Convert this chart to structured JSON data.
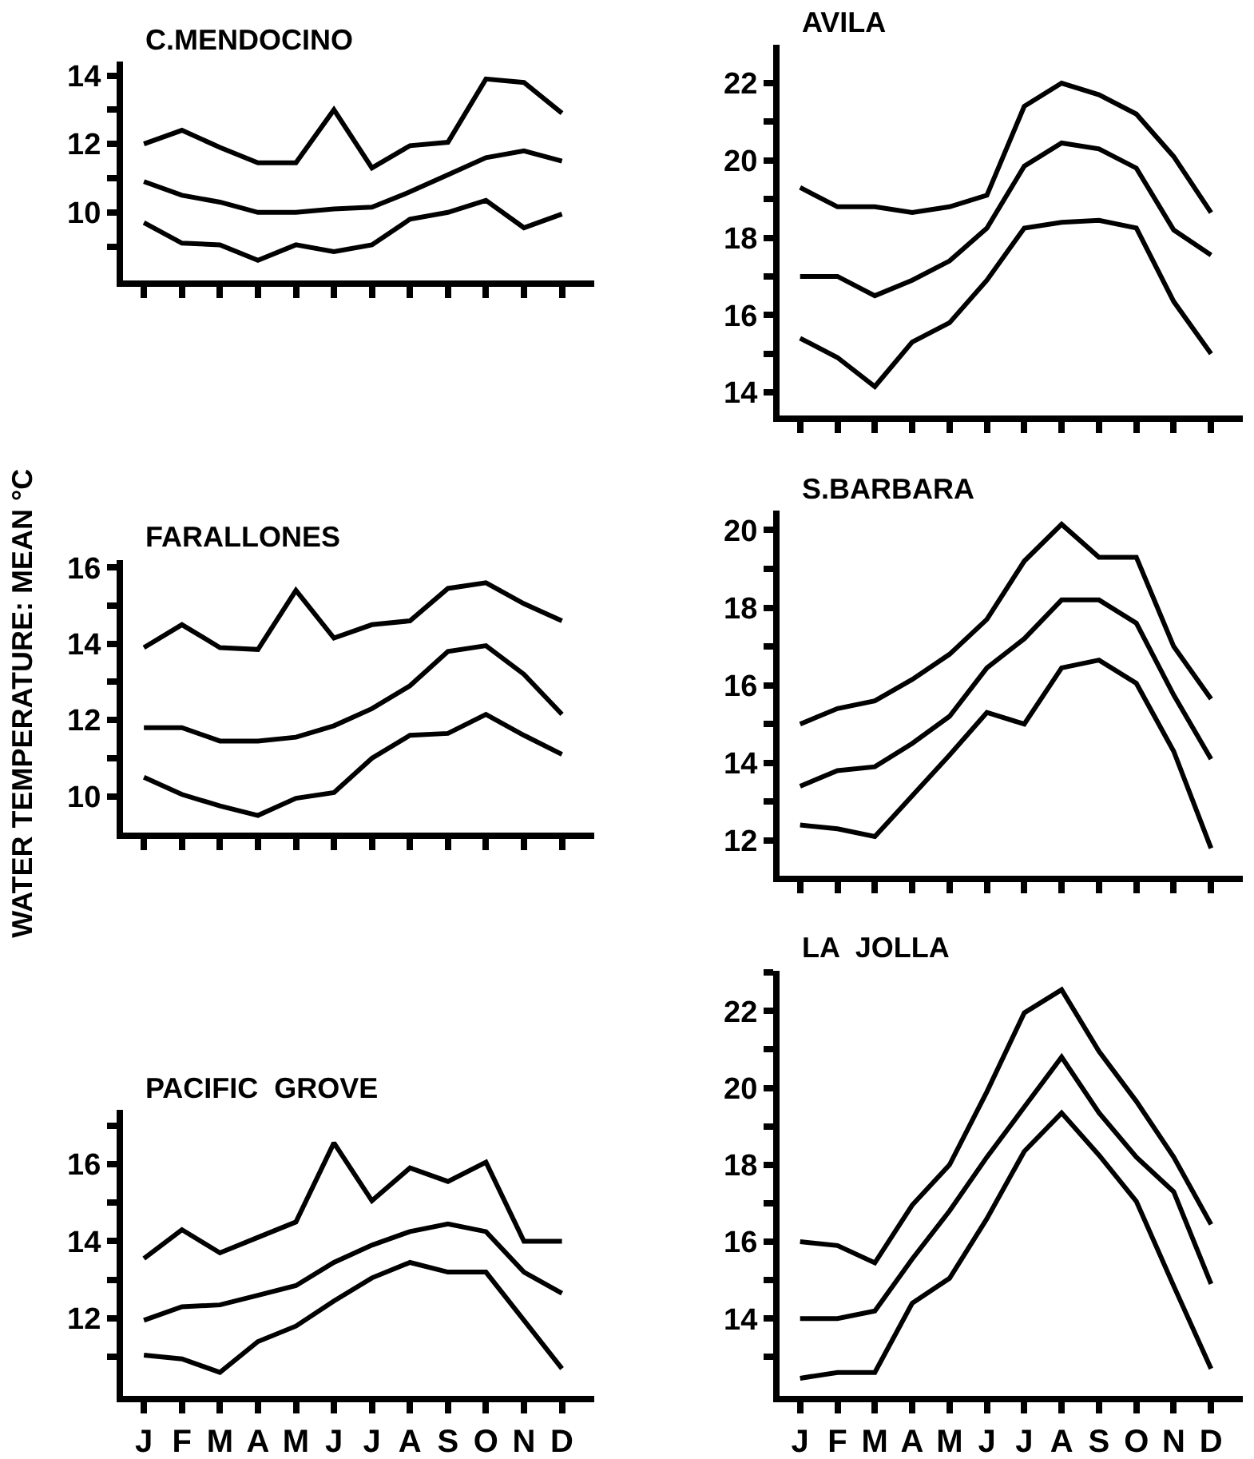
{
  "chart_data": [
    {
      "type": "line",
      "title": "C.MENDOCINO",
      "categories": [
        null,
        null,
        null,
        null,
        null,
        null,
        null,
        null,
        null,
        null,
        null,
        null
      ],
      "marker": "none",
      "line_style": "solid",
      "ylim": [
        8.0,
        14.4
      ],
      "yticks": [
        {
          "value": 9,
          "label": null
        },
        10,
        {
          "value": 11,
          "label": null
        },
        12,
        {
          "value": 13,
          "label": null
        },
        14
      ],
      "series": [
        {
          "color": "#000000",
          "values": [
            12.0,
            12.4,
            11.9,
            11.45,
            11.45,
            13.0,
            11.3,
            11.95,
            12.05,
            13.9,
            13.8,
            12.9
          ]
        },
        {
          "color": "#000000",
          "values": [
            10.9,
            10.5,
            10.3,
            10.0,
            10.0,
            10.1,
            10.15,
            10.6,
            11.1,
            11.6,
            11.8,
            11.5
          ]
        },
        {
          "color": "#000000",
          "values": [
            9.7,
            9.1,
            9.05,
            8.6,
            9.05,
            8.85,
            9.05,
            9.8,
            10.0,
            10.35,
            9.55,
            9.95
          ]
        }
      ]
    },
    {
      "type": "line",
      "title": "AVILA",
      "categories": [
        null,
        null,
        null,
        null,
        null,
        null,
        null,
        null,
        null,
        null,
        null,
        null
      ],
      "marker": "none",
      "line_style": "solid",
      "ylim": [
        13.4,
        23.0
      ],
      "yticks": [
        14,
        {
          "value": 15,
          "label": null
        },
        16,
        {
          "value": 17,
          "label": null
        },
        18,
        {
          "value": 19,
          "label": null
        },
        20,
        {
          "value": 21,
          "label": null
        },
        22
      ],
      "series": [
        {
          "color": "#000000",
          "values": [
            19.3,
            18.8,
            18.8,
            18.65,
            18.8,
            19.1,
            21.4,
            22.0,
            21.7,
            21.2,
            20.1,
            18.65
          ]
        },
        {
          "color": "#000000",
          "values": [
            17.0,
            17.0,
            16.5,
            16.9,
            17.4,
            18.25,
            19.85,
            20.45,
            20.3,
            19.8,
            18.2,
            17.55
          ]
        },
        {
          "color": "#000000",
          "values": [
            15.4,
            14.9,
            14.15,
            15.3,
            15.8,
            16.9,
            18.25,
            18.4,
            18.45,
            18.25,
            16.35,
            15.0
          ]
        }
      ]
    },
    {
      "type": "line",
      "title": "FARALLONES",
      "ylabel": "WATER TEMPERATURE: MEAN °C",
      "categories": [
        null,
        null,
        null,
        null,
        null,
        null,
        null,
        null,
        null,
        null,
        null,
        null
      ],
      "marker": "none",
      "line_style": "solid",
      "ylim": [
        9.05,
        16.2
      ],
      "yticks": [
        10,
        {
          "value": 11,
          "label": null
        },
        12,
        {
          "value": 13,
          "label": null
        },
        14,
        {
          "value": 15,
          "label": null
        },
        16
      ],
      "series": [
        {
          "color": "#000000",
          "values": [
            13.9,
            14.5,
            13.9,
            13.85,
            15.4,
            14.15,
            14.5,
            14.6,
            15.45,
            15.6,
            15.05,
            14.6
          ]
        },
        {
          "color": "#000000",
          "values": [
            11.8,
            11.8,
            11.45,
            11.45,
            11.55,
            11.85,
            12.3,
            12.9,
            13.8,
            13.95,
            13.2,
            12.15
          ]
        },
        {
          "color": "#000000",
          "values": [
            10.5,
            10.05,
            9.75,
            9.5,
            9.95,
            10.1,
            11.0,
            11.6,
            11.65,
            12.15,
            11.6,
            11.1
          ]
        }
      ]
    },
    {
      "type": "line",
      "title": "S.BARBARA",
      "categories": [
        null,
        null,
        null,
        null,
        null,
        null,
        null,
        null,
        null,
        null,
        null,
        null
      ],
      "marker": "none",
      "line_style": "solid",
      "ylim": [
        11.1,
        20.5
      ],
      "yticks": [
        12,
        {
          "value": 13,
          "label": null
        },
        14,
        {
          "value": 15,
          "label": null
        },
        16,
        {
          "value": 17,
          "label": null
        },
        18,
        {
          "value": 19,
          "label": null
        },
        20
      ],
      "series": [
        {
          "color": "#000000",
          "values": [
            15.0,
            15.4,
            15.6,
            16.15,
            16.8,
            17.7,
            19.2,
            20.15,
            19.3,
            19.3,
            17.0,
            15.65
          ]
        },
        {
          "color": "#000000",
          "values": [
            13.4,
            13.8,
            13.9,
            14.5,
            15.2,
            16.45,
            17.2,
            18.2,
            18.2,
            17.6,
            15.75,
            14.1
          ]
        },
        {
          "color": "#000000",
          "values": [
            12.4,
            12.3,
            12.1,
            13.15,
            14.2,
            15.3,
            15.0,
            16.45,
            16.65,
            16.05,
            14.3,
            11.8
          ]
        }
      ]
    },
    {
      "type": "line",
      "title": "PACIFIC  GROVE",
      "categories": [
        "J",
        "F",
        "M",
        "A",
        "M",
        "J",
        "J",
        "A",
        "S",
        "O",
        "N",
        "D"
      ],
      "marker": "none",
      "line_style": "solid",
      "ylim": [
        10.0,
        17.4
      ],
      "yticks": [
        {
          "value": 11,
          "label": null
        },
        12,
        {
          "value": 13,
          "label": null
        },
        14,
        {
          "value": 15,
          "label": null
        },
        16,
        {
          "value": 17,
          "label": null
        }
      ],
      "series": [
        {
          "color": "#000000",
          "values": [
            13.55,
            14.3,
            13.7,
            14.1,
            14.5,
            16.55,
            15.05,
            15.9,
            15.55,
            16.05,
            14.0,
            14.0
          ]
        },
        {
          "color": "#000000",
          "values": [
            11.95,
            12.3,
            12.35,
            12.6,
            12.85,
            13.45,
            13.9,
            14.25,
            14.45,
            14.25,
            13.2,
            12.65
          ]
        },
        {
          "color": "#000000",
          "values": [
            11.05,
            10.95,
            10.6,
            11.4,
            11.8,
            12.45,
            13.05,
            13.45,
            13.2,
            13.2,
            11.95,
            10.7
          ]
        }
      ]
    },
    {
      "type": "line",
      "title": "LA  JOLLA",
      "categories": [
        "J",
        "F",
        "M",
        "A",
        "M",
        "J",
        "J",
        "A",
        "S",
        "O",
        "N",
        "D"
      ],
      "marker": "none",
      "line_style": "solid",
      "ylim": [
        12.0,
        23.05
      ],
      "yticks": [
        {
          "value": 13,
          "label": null
        },
        14,
        {
          "value": 15,
          "label": null
        },
        16,
        {
          "value": 17,
          "label": null
        },
        18,
        {
          "value": 19,
          "label": null
        },
        20,
        {
          "value": 21,
          "label": null
        },
        22,
        {
          "value": 23,
          "label": null
        }
      ],
      "series": [
        {
          "color": "#000000",
          "values": [
            16.0,
            15.9,
            15.45,
            16.95,
            18.0,
            19.9,
            21.95,
            22.55,
            20.95,
            19.65,
            18.2,
            16.45
          ]
        },
        {
          "color": "#000000",
          "values": [
            14.0,
            14.0,
            14.2,
            15.55,
            16.8,
            18.2,
            19.5,
            20.8,
            19.35,
            18.2,
            17.3,
            14.9
          ]
        },
        {
          "color": "#000000",
          "values": [
            12.45,
            12.6,
            12.6,
            14.4,
            15.05,
            16.6,
            18.35,
            19.35,
            18.25,
            17.05,
            14.85,
            12.7
          ]
        }
      ]
    }
  ]
}
